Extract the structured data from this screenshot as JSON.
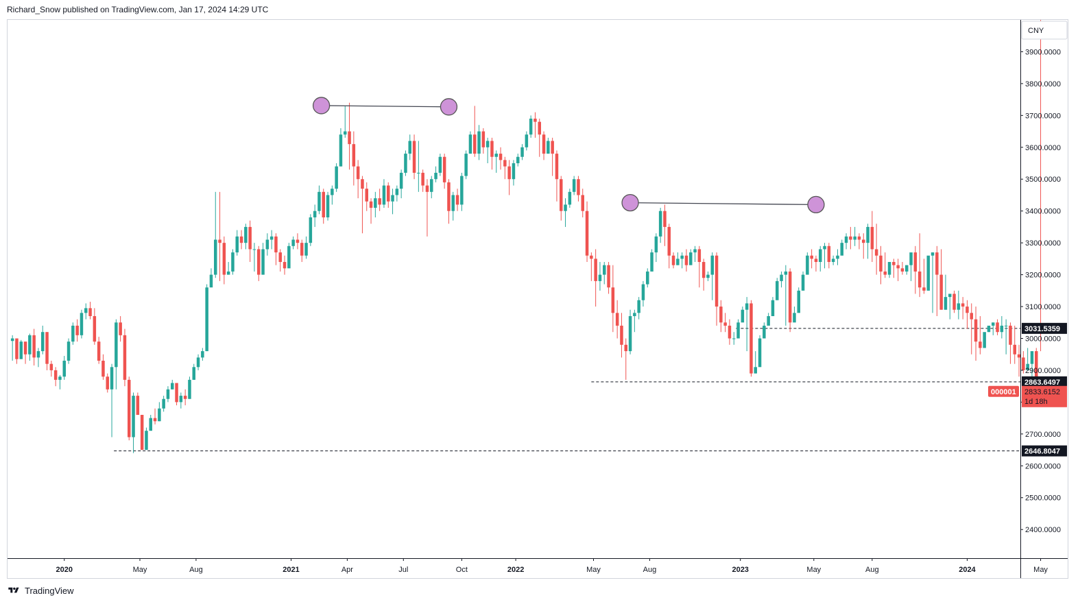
{
  "header": {
    "text": "Richard_Snow published on TradingView.com, Jan 17, 2024 14:29 UTC"
  },
  "footer": {
    "logo_icon": "tradingview-logo-icon",
    "brand": "TradingView"
  },
  "colors": {
    "up": "#26a69a",
    "down": "#ef5350",
    "marker_fill": "#ce93d8",
    "marker_stroke": "#555555",
    "level_line": "#131722",
    "badge_dark": "#131722",
    "badge_red": "#ef5350"
  },
  "chart_data": {
    "type": "candlestick",
    "currency": "CNY",
    "symbol_label": "000001",
    "last_price": "2833.6152",
    "countdown": "1d 18h",
    "ylim": [
      2310,
      4000
    ],
    "y_ticks": [
      2400,
      2500,
      2600,
      2700,
      2800,
      2900,
      3000,
      3100,
      3200,
      3300,
      3400,
      3500,
      3600,
      3700,
      3800,
      3900
    ],
    "y_tick_labels": [
      "2400.0000",
      "2500.0000",
      "2600.0000",
      "2700.0000",
      "",
      "2900.0000",
      "3000.0000",
      "3100.0000",
      "3200.0000",
      "3300.0000",
      "3400.0000",
      "3500.0000",
      "3600.0000",
      "3700.0000",
      "3800.0000",
      "3900.0000"
    ],
    "x_ticks": [
      {
        "label": "2020",
        "bold": true,
        "bar": 12.5
      },
      {
        "label": "May",
        "bold": false,
        "bar": 30
      },
      {
        "label": "Aug",
        "bold": false,
        "bar": 43
      },
      {
        "label": "2021",
        "bold": true,
        "bar": 65
      },
      {
        "label": "Apr",
        "bold": false,
        "bar": 78
      },
      {
        "label": "Jul",
        "bold": false,
        "bar": 91
      },
      {
        "label": "Oct",
        "bold": false,
        "bar": 104.5
      },
      {
        "label": "2022",
        "bold": true,
        "bar": 117
      },
      {
        "label": "May",
        "bold": false,
        "bar": 135
      },
      {
        "label": "Aug",
        "bold": false,
        "bar": 148
      },
      {
        "label": "2023",
        "bold": true,
        "bar": 169
      },
      {
        "label": "May",
        "bold": false,
        "bar": 186
      },
      {
        "label": "Aug",
        "bold": false,
        "bar": 199.5
      },
      {
        "label": "2024",
        "bold": true,
        "bar": 221.5
      },
      {
        "label": "May",
        "bold": false,
        "bar": 238.5
      }
    ],
    "levels": [
      {
        "value": 3031.5359,
        "label": "3031.5359",
        "start_bar": 168
      },
      {
        "value": 2863.6497,
        "label": "2863.6497",
        "start_bar": 134.5
      },
      {
        "value": 2646.8047,
        "label": "2646.8047",
        "start_bar": 24
      }
    ],
    "double_tops": [
      {
        "a": {
          "bar": 72,
          "value": 3731
        },
        "b": {
          "bar": 101.5,
          "value": 3727
        }
      },
      {
        "a": {
          "bar": 143.5,
          "value": 3426
        },
        "b": {
          "bar": 186.5,
          "value": 3420
        }
      }
    ],
    "closes": [
      3000,
      2935,
      2990,
      2950,
      3010,
      2940,
      2960,
      3020,
      2920,
      2900,
      2870,
      2880,
      2930,
      2990,
      3040,
      3010,
      3080,
      3095,
      3070,
      2990,
      2930,
      2880,
      2840,
      2910,
      3050,
      3010,
      2870,
      2690,
      2820,
      2760,
      2650,
      2710,
      2750,
      2740,
      2780,
      2810,
      2840,
      2860,
      2800,
      2820,
      2810,
      2870,
      2910,
      2940,
      2960,
      3160,
      3200,
      3310,
      3300,
      3200,
      3210,
      3270,
      3320,
      3300,
      3350,
      3280,
      3280,
      3200,
      3280,
      3310,
      3320,
      3270,
      3240,
      3220,
      3290,
      3310,
      3300,
      3260,
      3300,
      3380,
      3400,
      3460,
      3380,
      3450,
      3470,
      3540,
      3640,
      3650,
      3610,
      3540,
      3500,
      3470,
      3430,
      3410,
      3440,
      3420,
      3480,
      3430,
      3450,
      3470,
      3520,
      3580,
      3620,
      3520,
      3520,
      3480,
      3460,
      3500,
      3520,
      3570,
      3490,
      3400,
      3450,
      3420,
      3510,
      3580,
      3640,
      3580,
      3650,
      3600,
      3620,
      3570,
      3580,
      3560,
      3540,
      3500,
      3550,
      3570,
      3600,
      3640,
      3690,
      3680,
      3640,
      3580,
      3620,
      3580,
      3500,
      3400,
      3420,
      3460,
      3500,
      3450,
      3400,
      3260,
      3250,
      3180,
      3200,
      3230,
      3160,
      3080,
      3040,
      2980,
      2960,
      3070,
      3080,
      3120,
      3170,
      3210,
      3270,
      3320,
      3400,
      3350,
      3260,
      3230,
      3250,
      3260,
      3230,
      3270,
      3280,
      3240,
      3190,
      3200,
      3260,
      3100,
      3050,
      3040,
      3000,
      3000,
      3050,
      3090,
      3110,
      2890,
      2910,
      3000,
      3040,
      3070,
      3120,
      3180,
      3200,
      3210,
      3050,
      3080,
      3150,
      3200,
      3260,
      3250,
      3240,
      3280,
      3290,
      3240,
      3250,
      3260,
      3300,
      3320,
      3310,
      3320,
      3310,
      3300,
      3350,
      3280,
      3260,
      3210,
      3200,
      3240,
      3230,
      3220,
      3210,
      3230,
      3270,
      3210,
      3160,
      3150,
      3260,
      3270,
      3200,
      3090,
      3130,
      3140,
      3090,
      3110,
      3100,
      3080,
      3060,
      2990,
      2970,
      3020,
      3040,
      3050,
      3020,
      3040,
      3040,
      2980,
      2950,
      2940,
      2900,
      2920,
      2960,
      2880,
      2833.6152
    ],
    "highs": [
      3010,
      3000,
      2995,
      2990,
      3015,
      3030,
      2970,
      3040,
      3020,
      2930,
      2910,
      2885,
      2945,
      3000,
      3050,
      3060,
      3090,
      3110,
      3115,
      3095,
      3005,
      2950,
      2890,
      2920,
      3060,
      3070,
      3030,
      2880,
      2830,
      2830,
      2760,
      2720,
      2760,
      2780,
      2800,
      2820,
      2850,
      2870,
      2860,
      2830,
      2840,
      2880,
      2920,
      2950,
      2970,
      3170,
      3220,
      3460,
      3460,
      3320,
      3240,
      3280,
      3340,
      3340,
      3360,
      3370,
      3300,
      3290,
      3300,
      3330,
      3340,
      3330,
      3280,
      3260,
      3300,
      3320,
      3330,
      3310,
      3320,
      3390,
      3420,
      3480,
      3470,
      3460,
      3480,
      3550,
      3660,
      3730,
      3740,
      3650,
      3560,
      3510,
      3490,
      3440,
      3460,
      3470,
      3500,
      3490,
      3470,
      3480,
      3530,
      3590,
      3640,
      3640,
      3620,
      3530,
      3500,
      3510,
      3540,
      3580,
      3580,
      3500,
      3460,
      3470,
      3520,
      3590,
      3650,
      3730,
      3670,
      3660,
      3630,
      3630,
      3590,
      3600,
      3570,
      3560,
      3560,
      3580,
      3610,
      3650,
      3700,
      3710,
      3690,
      3650,
      3630,
      3630,
      3590,
      3510,
      3440,
      3470,
      3510,
      3510,
      3470,
      3430,
      3270,
      3280,
      3240,
      3240,
      3240,
      3230,
      3120,
      3080,
      3000,
      3090,
      3090,
      3130,
      3180,
      3220,
      3280,
      3330,
      3410,
      3420,
      3360,
      3270,
      3270,
      3270,
      3280,
      3280,
      3290,
      3290,
      3250,
      3210,
      3270,
      3270,
      3120,
      3080,
      3060,
      3020,
      3060,
      3100,
      3130,
      3120,
      2960,
      3010,
      3050,
      3080,
      3130,
      3190,
      3210,
      3230,
      3220,
      3100,
      3160,
      3210,
      3270,
      3280,
      3260,
      3290,
      3300,
      3300,
      3260,
      3280,
      3310,
      3330,
      3350,
      3350,
      3330,
      3330,
      3360,
      3400,
      3360,
      3290,
      3270,
      3220,
      3250,
      3250,
      3240,
      3230,
      3250,
      3290,
      3330,
      3250,
      3210,
      3270,
      3290,
      3280,
      3200,
      3140,
      3150,
      3150,
      3130,
      3120,
      3110,
      3100,
      3070,
      3000,
      3030,
      3050,
      3060,
      3070,
      3060,
      3050,
      3040,
      2980,
      2960,
      2970,
      2930,
      2970,
      2960,
      2880
    ],
    "lows": [
      2930,
      2920,
      2940,
      2920,
      2930,
      2915,
      2910,
      2950,
      2900,
      2880,
      2850,
      2840,
      2870,
      2920,
      2980,
      2990,
      3000,
      3060,
      3060,
      2980,
      2920,
      2870,
      2830,
      2690,
      2840,
      2990,
      2850,
      2680,
      2640,
      2760,
      2650,
      2650,
      2720,
      2730,
      2740,
      2770,
      2800,
      2840,
      2790,
      2780,
      2790,
      2810,
      2870,
      2900,
      2930,
      2960,
      3180,
      3190,
      3180,
      3170,
      3200,
      3200,
      3260,
      3280,
      3280,
      3240,
      3210,
      3180,
      3200,
      3260,
      3280,
      3230,
      3210,
      3200,
      3240,
      3280,
      3280,
      3240,
      3250,
      3290,
      3350,
      3390,
      3360,
      3370,
      3420,
      3460,
      3540,
      3630,
      3530,
      3480,
      3440,
      3330,
      3400,
      3360,
      3380,
      3400,
      3410,
      3410,
      3390,
      3430,
      3440,
      3510,
      3560,
      3500,
      3460,
      3460,
      3320,
      3440,
      3490,
      3510,
      3470,
      3360,
      3370,
      3400,
      3400,
      3500,
      3580,
      3570,
      3560,
      3580,
      3550,
      3530,
      3520,
      3530,
      3500,
      3450,
      3480,
      3540,
      3560,
      3590,
      3630,
      3630,
      3570,
      3560,
      3580,
      3510,
      3430,
      3370,
      3350,
      3410,
      3450,
      3430,
      3380,
      3240,
      3180,
      3100,
      3150,
      3170,
      3140,
      3020,
      3000,
      2940,
      2870,
      2950,
      3020,
      3060,
      3100,
      3160,
      3210,
      3240,
      3300,
      3290,
      3220,
      3220,
      3230,
      3220,
      3210,
      3240,
      3240,
      3160,
      3150,
      3180,
      3120,
      3040,
      3020,
      3020,
      2980,
      2980,
      3000,
      3070,
      2960,
      2880,
      2890,
      2990,
      3020,
      3050,
      3080,
      3150,
      3160,
      3040,
      3020,
      3060,
      3110,
      3180,
      3220,
      3220,
      3210,
      3210,
      3220,
      3220,
      3230,
      3230,
      3280,
      3280,
      3280,
      3290,
      3280,
      3250,
      3250,
      3240,
      3200,
      3170,
      3190,
      3190,
      3190,
      3180,
      3200,
      3200,
      3180,
      3140,
      3130,
      3140,
      3150,
      3080,
      3070,
      3090,
      3090,
      3060,
      3080,
      3060,
      3060,
      3030,
      2950,
      2930,
      2950,
      3010,
      3020,
      3010,
      3010,
      3000,
      2950,
      2920,
      2920,
      2880,
      2890,
      2910,
      2850,
      2820
    ]
  }
}
